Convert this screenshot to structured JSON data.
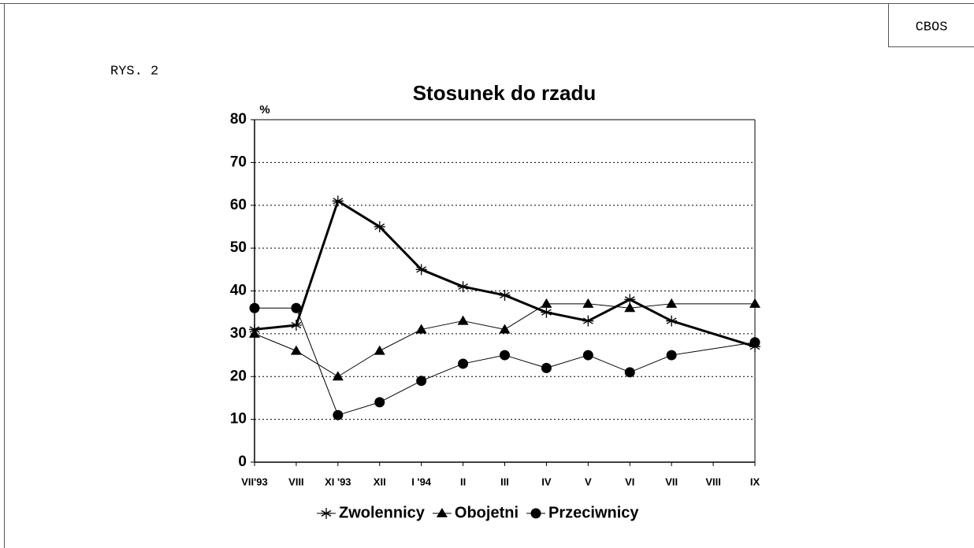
{
  "header": {
    "badge": "CBOS",
    "figure_label": "RYS. 2"
  },
  "chart_data": {
    "type": "line",
    "title": "Stosunek do rzadu",
    "y_label": "%",
    "categories": [
      "VII'93",
      "VIII",
      "XI '93",
      "XII",
      "I '94",
      "II",
      "III",
      "IV",
      "V",
      "VI",
      "VII",
      "VIII",
      "IX"
    ],
    "series": [
      {
        "name": "Zwolennicy",
        "color": "#000000",
        "marker": "asterisk",
        "line_width": 3,
        "values": [
          31,
          32,
          61,
          55,
          45,
          41,
          39,
          35,
          33,
          38,
          33,
          null,
          27
        ]
      },
      {
        "name": "Obojetni",
        "color": "#000000",
        "marker": "triangle",
        "line_width": 1,
        "values": [
          30,
          26,
          20,
          26,
          31,
          33,
          31,
          37,
          37,
          36,
          37,
          null,
          37
        ]
      },
      {
        "name": "Przeciwnicy",
        "color": "#000000",
        "marker": "circle",
        "line_width": 1,
        "values": [
          36,
          36,
          11,
          14,
          19,
          23,
          25,
          22,
          25,
          21,
          25,
          null,
          28
        ]
      }
    ],
    "ylim": [
      0,
      80
    ],
    "yticks": [
      0,
      10,
      20,
      30,
      40,
      50,
      60,
      70,
      80
    ],
    "grid": true,
    "legend": "bottom"
  }
}
